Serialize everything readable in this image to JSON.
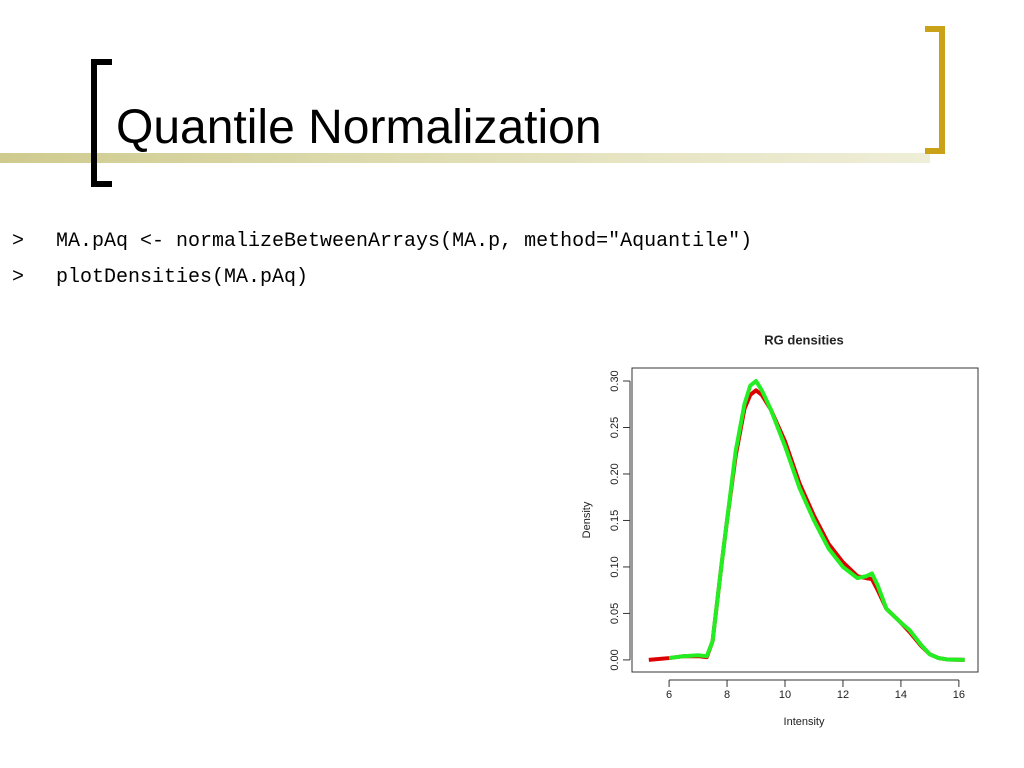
{
  "slide": {
    "title": "Quantile Normalization",
    "code": [
      {
        "prompt": ">",
        "text": "MA.pAq <- normalizeBetweenArrays(MA.p, method=\"Aquantile\")"
      },
      {
        "prompt": ">",
        "text": "plotDensities(MA.pAq)"
      }
    ]
  },
  "chart_data": {
    "type": "line",
    "title": "RG densities",
    "xlabel": "Intensity",
    "ylabel": "Density",
    "x": [
      5.3,
      6,
      6.5,
      7,
      7.3,
      7.5,
      7.8,
      8,
      8.3,
      8.6,
      8.8,
      9,
      9.2,
      9.5,
      10,
      10.5,
      11,
      11.5,
      12,
      12.5,
      12.8,
      13,
      13.2,
      13.5,
      14,
      14.3,
      14.7,
      15,
      15.3,
      15.6,
      16.2
    ],
    "series": [
      {
        "color": "#dd0000",
        "values": [
          0,
          0.002,
          0.004,
          0.004,
          0.003,
          0.02,
          0.1,
          0.15,
          0.22,
          0.27,
          0.285,
          0.29,
          0.285,
          0.27,
          0.235,
          0.19,
          0.155,
          0.125,
          0.105,
          0.09,
          0.088,
          0.087,
          0.075,
          0.055,
          0.04,
          0.03,
          0.015,
          0.006,
          0.002,
          0.0005,
          0
        ]
      },
      {
        "color": "#22ee22",
        "values": [
          null,
          0.002,
          0.004,
          0.005,
          0.004,
          0.02,
          0.1,
          0.15,
          0.225,
          0.275,
          0.295,
          0.3,
          0.29,
          0.27,
          0.23,
          0.185,
          0.15,
          0.12,
          0.1,
          0.088,
          0.09,
          0.093,
          0.08,
          0.055,
          0.04,
          0.032,
          0.016,
          0.006,
          0.002,
          0.0005,
          0
        ]
      }
    ],
    "xlim": [
      4.72,
      16.66
    ],
    "ylim": [
      -0.013,
      0.314
    ],
    "xticks": [
      6,
      8,
      10,
      12,
      14,
      16
    ],
    "yticks": [
      {
        "value": 0,
        "label": "0.00"
      },
      0.05,
      {
        "value": 0.1,
        "label": "0.10"
      },
      0.15,
      {
        "value": 0.2,
        "label": "0.20"
      },
      0.25,
      {
        "value": 0.3,
        "label": "0.30"
      }
    ],
    "grid": false
  }
}
